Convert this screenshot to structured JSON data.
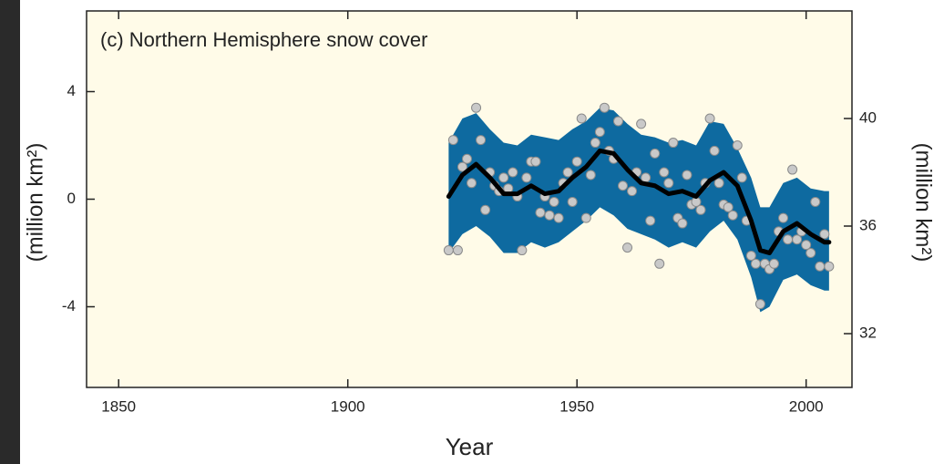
{
  "chart_data": {
    "type": "line",
    "title": "(c) Northern Hemisphere snow cover",
    "xlabel": "Year",
    "ylabel": "(million km²)",
    "y2label": "(million km²)",
    "xlim": [
      1843,
      2010
    ],
    "xticks": [
      1850,
      1900,
      1950,
      2000
    ],
    "ylim": [
      -7,
      7
    ],
    "yticks": [
      -4,
      0,
      4
    ],
    "y2lim": [
      30,
      44
    ],
    "y2ticks": [
      32,
      36,
      40
    ],
    "background": "#fffbe8",
    "band": {
      "color": "#0e6aa0",
      "x": [
        1922,
        1925,
        1928,
        1931,
        1934,
        1937,
        1940,
        1943,
        1946,
        1949,
        1952,
        1955,
        1958,
        1961,
        1964,
        1967,
        1970,
        1973,
        1976,
        1979,
        1982,
        1985,
        1988,
        1990,
        1992,
        1995,
        1998,
        2001,
        2004,
        2005
      ],
      "upper": [
        2.1,
        3.0,
        3.2,
        2.6,
        2.1,
        2.0,
        2.4,
        2.3,
        2.2,
        2.6,
        2.9,
        3.4,
        3.3,
        2.8,
        2.4,
        2.3,
        2.1,
        2.2,
        2.0,
        2.9,
        2.8,
        1.9,
        0.8,
        -0.3,
        -0.3,
        0.6,
        0.8,
        0.4,
        0.3,
        0.3
      ],
      "lower": [
        -2.0,
        -1.3,
        -1.0,
        -1.4,
        -2.0,
        -2.0,
        -1.6,
        -1.8,
        -1.6,
        -1.2,
        -0.8,
        -0.3,
        -0.6,
        -1.1,
        -1.3,
        -1.5,
        -1.8,
        -1.6,
        -1.8,
        -1.2,
        -0.8,
        -1.5,
        -2.9,
        -4.2,
        -4.0,
        -3.0,
        -2.8,
        -3.2,
        -3.4,
        -3.4
      ]
    },
    "smooth": {
      "color": "#000000",
      "x": [
        1922,
        1925,
        1928,
        1931,
        1934,
        1937,
        1940,
        1943,
        1946,
        1949,
        1952,
        1955,
        1958,
        1961,
        1964,
        1967,
        1970,
        1973,
        1976,
        1979,
        1982,
        1985,
        1988,
        1990,
        1992,
        1995,
        1998,
        2001,
        2004,
        2005
      ],
      "values": [
        0.1,
        0.9,
        1.3,
        0.8,
        0.2,
        0.2,
        0.5,
        0.2,
        0.3,
        0.8,
        1.2,
        1.8,
        1.7,
        1.1,
        0.6,
        0.5,
        0.2,
        0.3,
        0.1,
        0.7,
        1.0,
        0.5,
        -0.8,
        -1.9,
        -2.0,
        -1.2,
        -0.9,
        -1.3,
        -1.6,
        -1.6
      ]
    },
    "points": {
      "color": "#c9c9c9",
      "x": [
        1922,
        1923,
        1924,
        1925,
        1926,
        1927,
        1928,
        1929,
        1930,
        1931,
        1932,
        1933,
        1934,
        1935,
        1936,
        1937,
        1938,
        1939,
        1940,
        1941,
        1942,
        1943,
        1944,
        1945,
        1946,
        1947,
        1948,
        1949,
        1950,
        1951,
        1952,
        1953,
        1954,
        1955,
        1956,
        1957,
        1958,
        1959,
        1960,
        1961,
        1962,
        1963,
        1964,
        1965,
        1966,
        1967,
        1968,
        1969,
        1970,
        1971,
        1972,
        1973,
        1974,
        1975,
        1976,
        1977,
        1978,
        1979,
        1980,
        1981,
        1982,
        1983,
        1984,
        1985,
        1986,
        1987,
        1988,
        1989,
        1990,
        1991,
        1992,
        1993,
        1994,
        1995,
        1996,
        1997,
        1998,
        1999,
        2000,
        2001,
        2002,
        2003,
        2004,
        2005
      ],
      "values": [
        -1.9,
        2.2,
        -1.9,
        1.2,
        1.5,
        0.6,
        3.4,
        2.2,
        -0.4,
        1.0,
        0.5,
        0.3,
        0.8,
        0.4,
        1.0,
        0.1,
        -1.9,
        0.8,
        1.4,
        1.4,
        -0.5,
        0.1,
        -0.6,
        -0.1,
        -0.7,
        0.6,
        1.0,
        -0.1,
        1.4,
        3.0,
        -0.7,
        0.9,
        2.1,
        2.5,
        3.4,
        1.8,
        1.5,
        2.9,
        0.5,
        -1.8,
        0.3,
        1.0,
        2.8,
        0.8,
        -0.8,
        1.7,
        -2.4,
        1.0,
        0.6,
        2.1,
        -0.7,
        -0.9,
        0.9,
        -0.2,
        -0.1,
        -0.4,
        0.6,
        3.0,
        1.8,
        0.6,
        -0.2,
        -0.3,
        -0.6,
        2.0,
        0.8,
        -0.8,
        -2.1,
        -2.4,
        -3.9,
        -2.4,
        -2.6,
        -2.4,
        -1.2,
        -0.7,
        -1.5,
        1.1,
        -1.5,
        -1.2,
        -1.7,
        -2.0,
        -0.1,
        -2.5,
        -1.3,
        -2.5
      ]
    }
  }
}
